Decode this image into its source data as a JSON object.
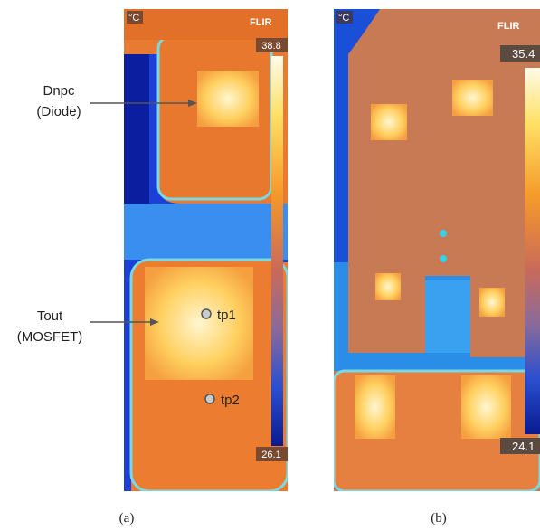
{
  "panels": [
    {
      "unit": "°C",
      "brand": "FLIR",
      "scale_max": 38.8,
      "scale_min": 26.1,
      "callouts": [
        {
          "lines": [
            "Dnpc",
            "(Diode)"
          ]
        },
        {
          "lines": [
            "Tout",
            "(MOSFET)"
          ]
        }
      ],
      "points": [
        "tp1",
        "tp2"
      ],
      "caption": "(a)"
    },
    {
      "unit": "°C",
      "brand": "FLIR",
      "scale_max": 35.4,
      "scale_min": 24.1,
      "caption": "(b)"
    }
  ]
}
